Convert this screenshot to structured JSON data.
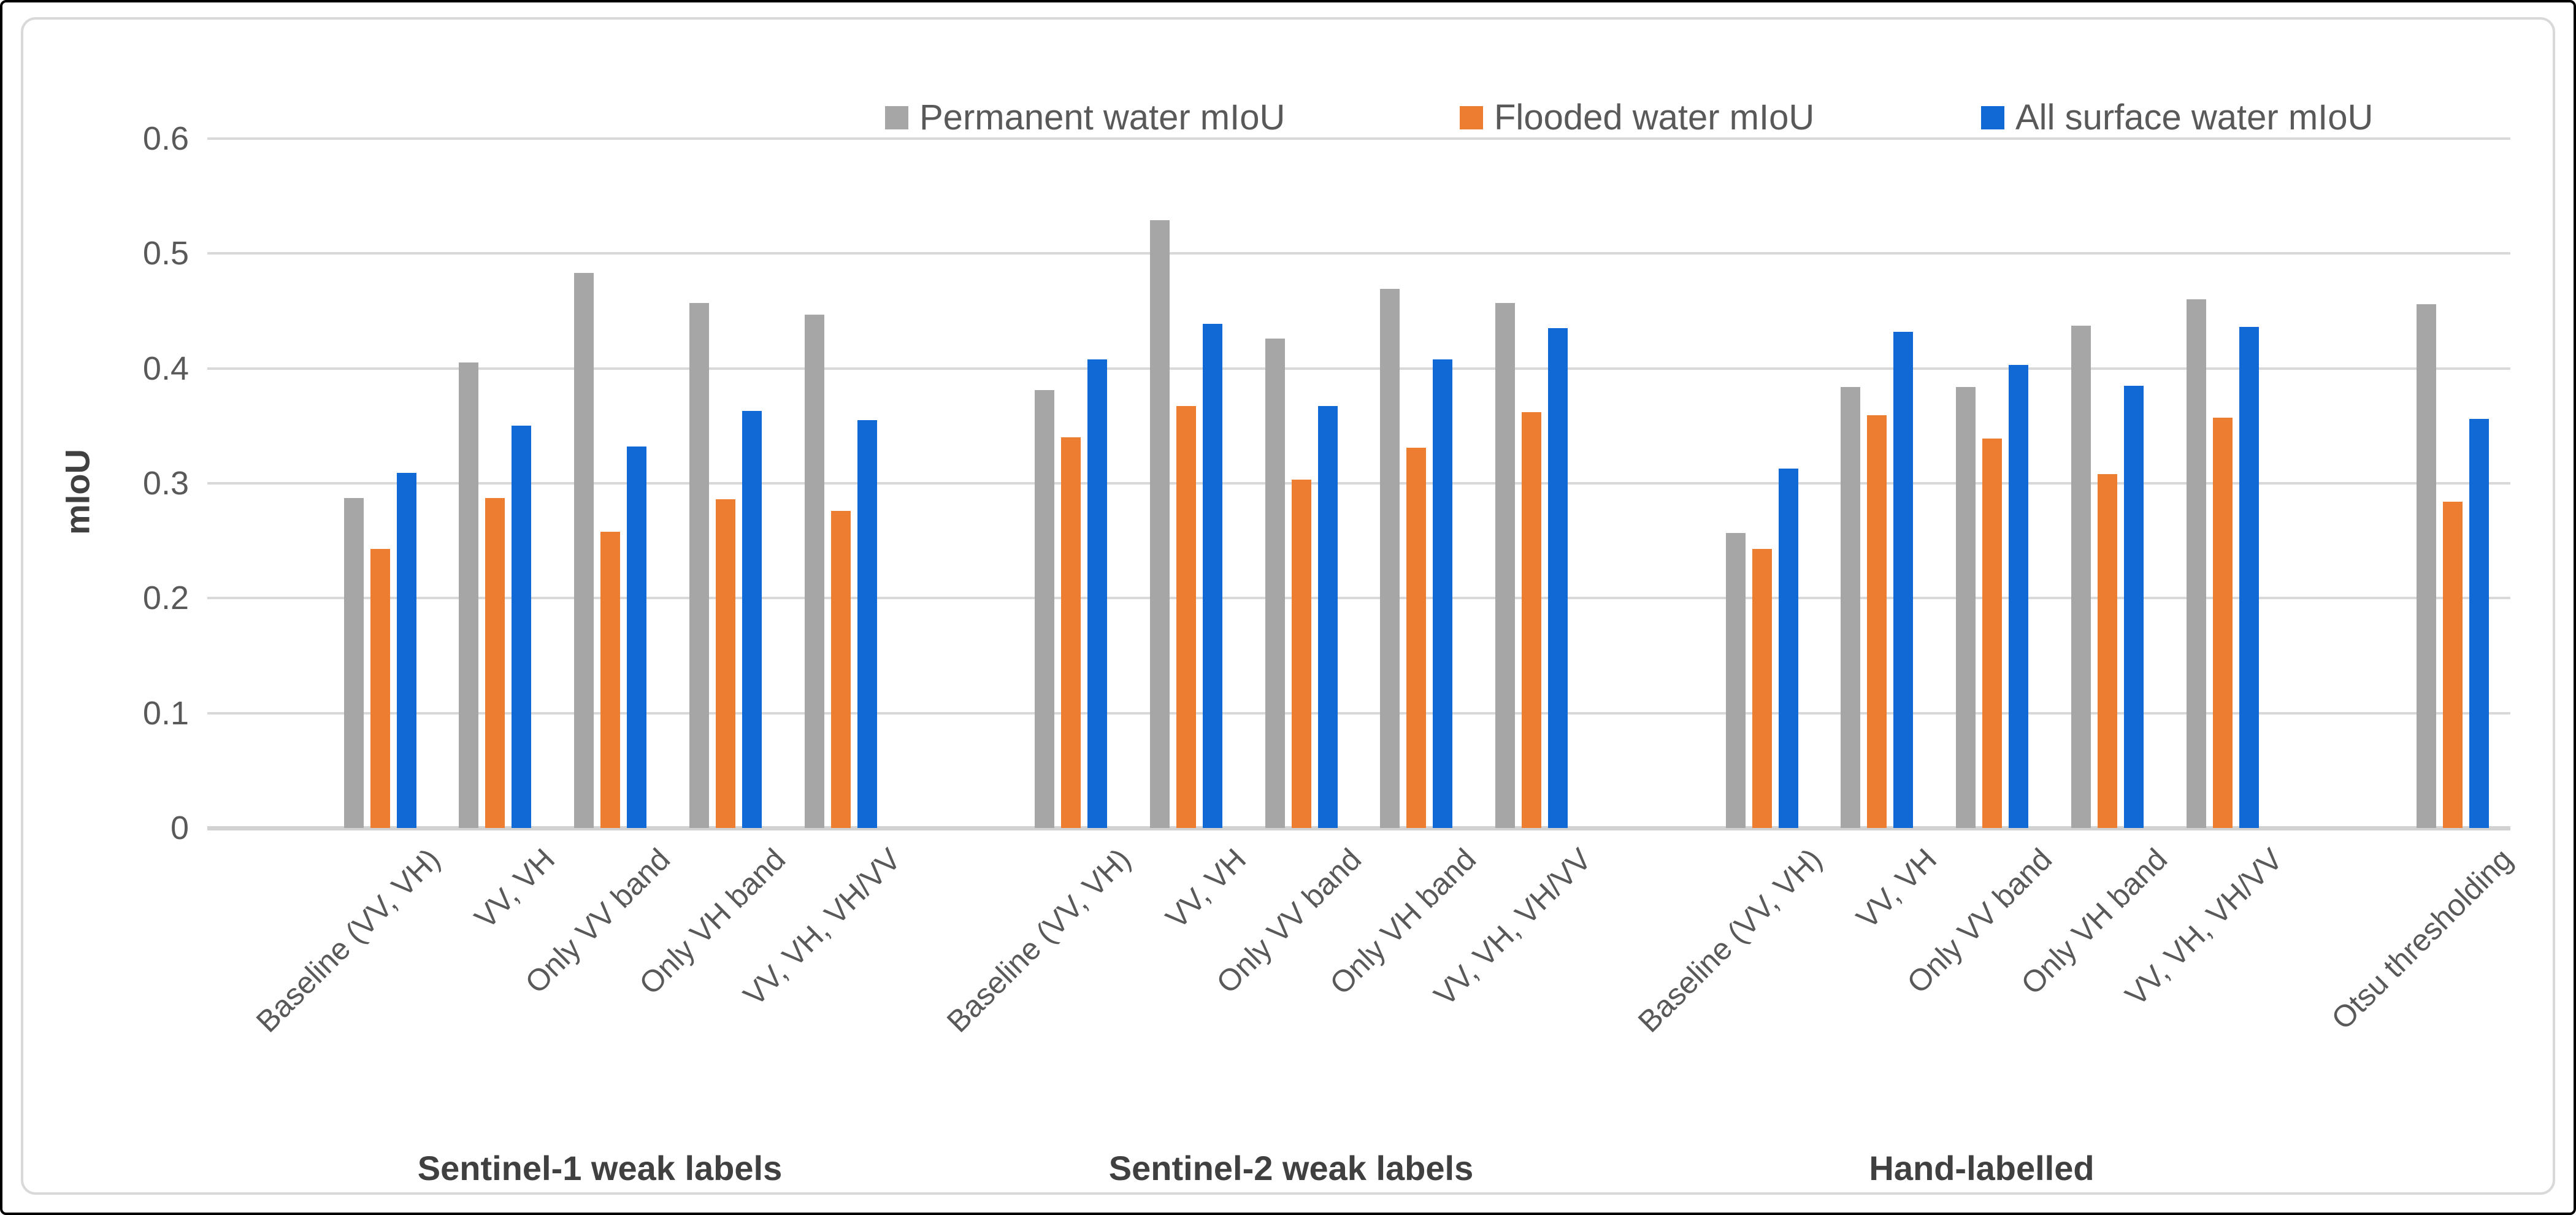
{
  "chart_data": {
    "type": "bar",
    "title": "",
    "xlabel": "",
    "ylabel": "mIoU",
    "ylim": [
      0,
      0.6
    ],
    "ytick_step": 0.1,
    "ytick_labels": [
      "0",
      "0.1",
      "0.2",
      "0.3",
      "0.4",
      "0.5",
      "0.6"
    ],
    "grid": "horizontal",
    "legend_position": "top",
    "groups": [
      {
        "label": "Sentinel-1 weak labels",
        "categories": [
          "Baseline (VV, VH)",
          "VV, VH",
          "Only VV band",
          "Only VH band",
          "VV, VH, VH/VV"
        ]
      },
      {
        "label": "Sentinel-2 weak labels",
        "categories": [
          "Baseline (VV, VH)",
          "VV, VH",
          "Only VV band",
          "Only VH band",
          "VV, VH, VH/VV"
        ]
      },
      {
        "label": "Hand-labelled",
        "categories": [
          "Baseline (VV, VH)",
          "VV, VH",
          "Only VV band",
          "Only VH band",
          "VV, VH, VH/VV"
        ]
      },
      {
        "label": "",
        "categories": [
          "Otsu thresholding"
        ]
      }
    ],
    "series": [
      {
        "name": "Permanent water mIoU",
        "color": "#A6A6A6",
        "values": [
          [
            0.287,
            0.405,
            0.483,
            0.457,
            0.447
          ],
          [
            0.381,
            0.529,
            0.426,
            0.469,
            0.457
          ],
          [
            0.257,
            0.384,
            0.384,
            0.437,
            0.46
          ],
          [
            0.456
          ]
        ]
      },
      {
        "name": "Flooded water mIoU",
        "color": "#ED7D31",
        "values": [
          [
            0.243,
            0.287,
            0.258,
            0.286,
            0.276
          ],
          [
            0.34,
            0.367,
            0.303,
            0.331,
            0.362
          ],
          [
            0.243,
            0.359,
            0.339,
            0.308,
            0.357
          ],
          [
            0.284
          ]
        ]
      },
      {
        "name": "All surface water mIoU",
        "color": "#1169D6",
        "values": [
          [
            0.309,
            0.35,
            0.332,
            0.363,
            0.355
          ],
          [
            0.408,
            0.439,
            0.367,
            0.408,
            0.435
          ],
          [
            0.313,
            0.432,
            0.403,
            0.385,
            0.436
          ],
          [
            0.356
          ]
        ]
      }
    ],
    "colors": {
      "gridline": "#D9D9D9",
      "axis_line": "#D2D2D2",
      "tick_text": "#595959",
      "group_label_text": "#404040",
      "frame_border": "#D9D9D9",
      "outer_border": "#000000",
      "background": "#FFFFFF"
    }
  }
}
